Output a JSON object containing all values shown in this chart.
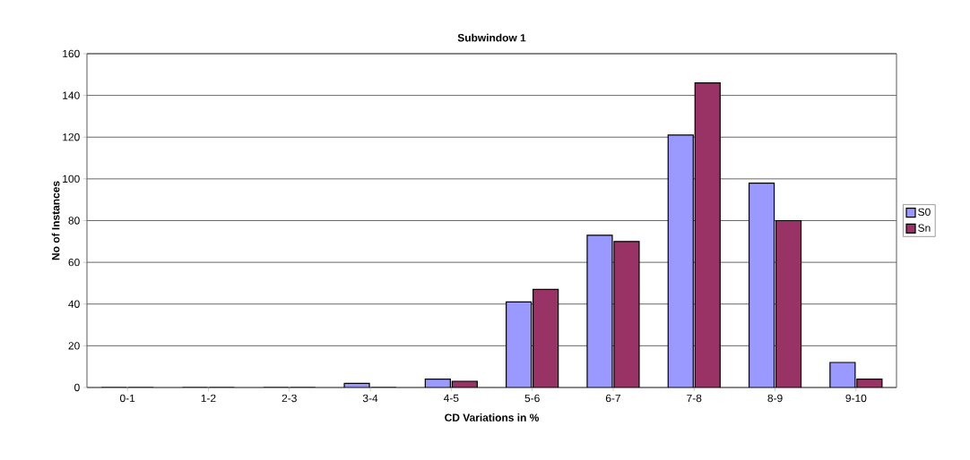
{
  "chart_data": {
    "type": "bar",
    "title": "Subwindow 1",
    "xlabel": "CD Variations in %",
    "ylabel": "No of Instances",
    "categories": [
      "0-1",
      "1-2",
      "2-3",
      "3-4",
      "4-5",
      "5-6",
      "6-7",
      "7-8",
      "8-9",
      "9-10"
    ],
    "series": [
      {
        "name": "S0",
        "color": "#9999ff",
        "values": [
          0,
          0,
          0,
          2,
          4,
          41,
          73,
          121,
          98,
          12
        ]
      },
      {
        "name": "Sn",
        "color": "#993366",
        "values": [
          0,
          0,
          0,
          0,
          3,
          47,
          70,
          146,
          80,
          4
        ]
      }
    ],
    "ylim": [
      0,
      160
    ],
    "yticks": [
      0,
      20,
      40,
      60,
      80,
      100,
      120,
      140,
      160
    ],
    "grid": "y",
    "legend": "right"
  }
}
